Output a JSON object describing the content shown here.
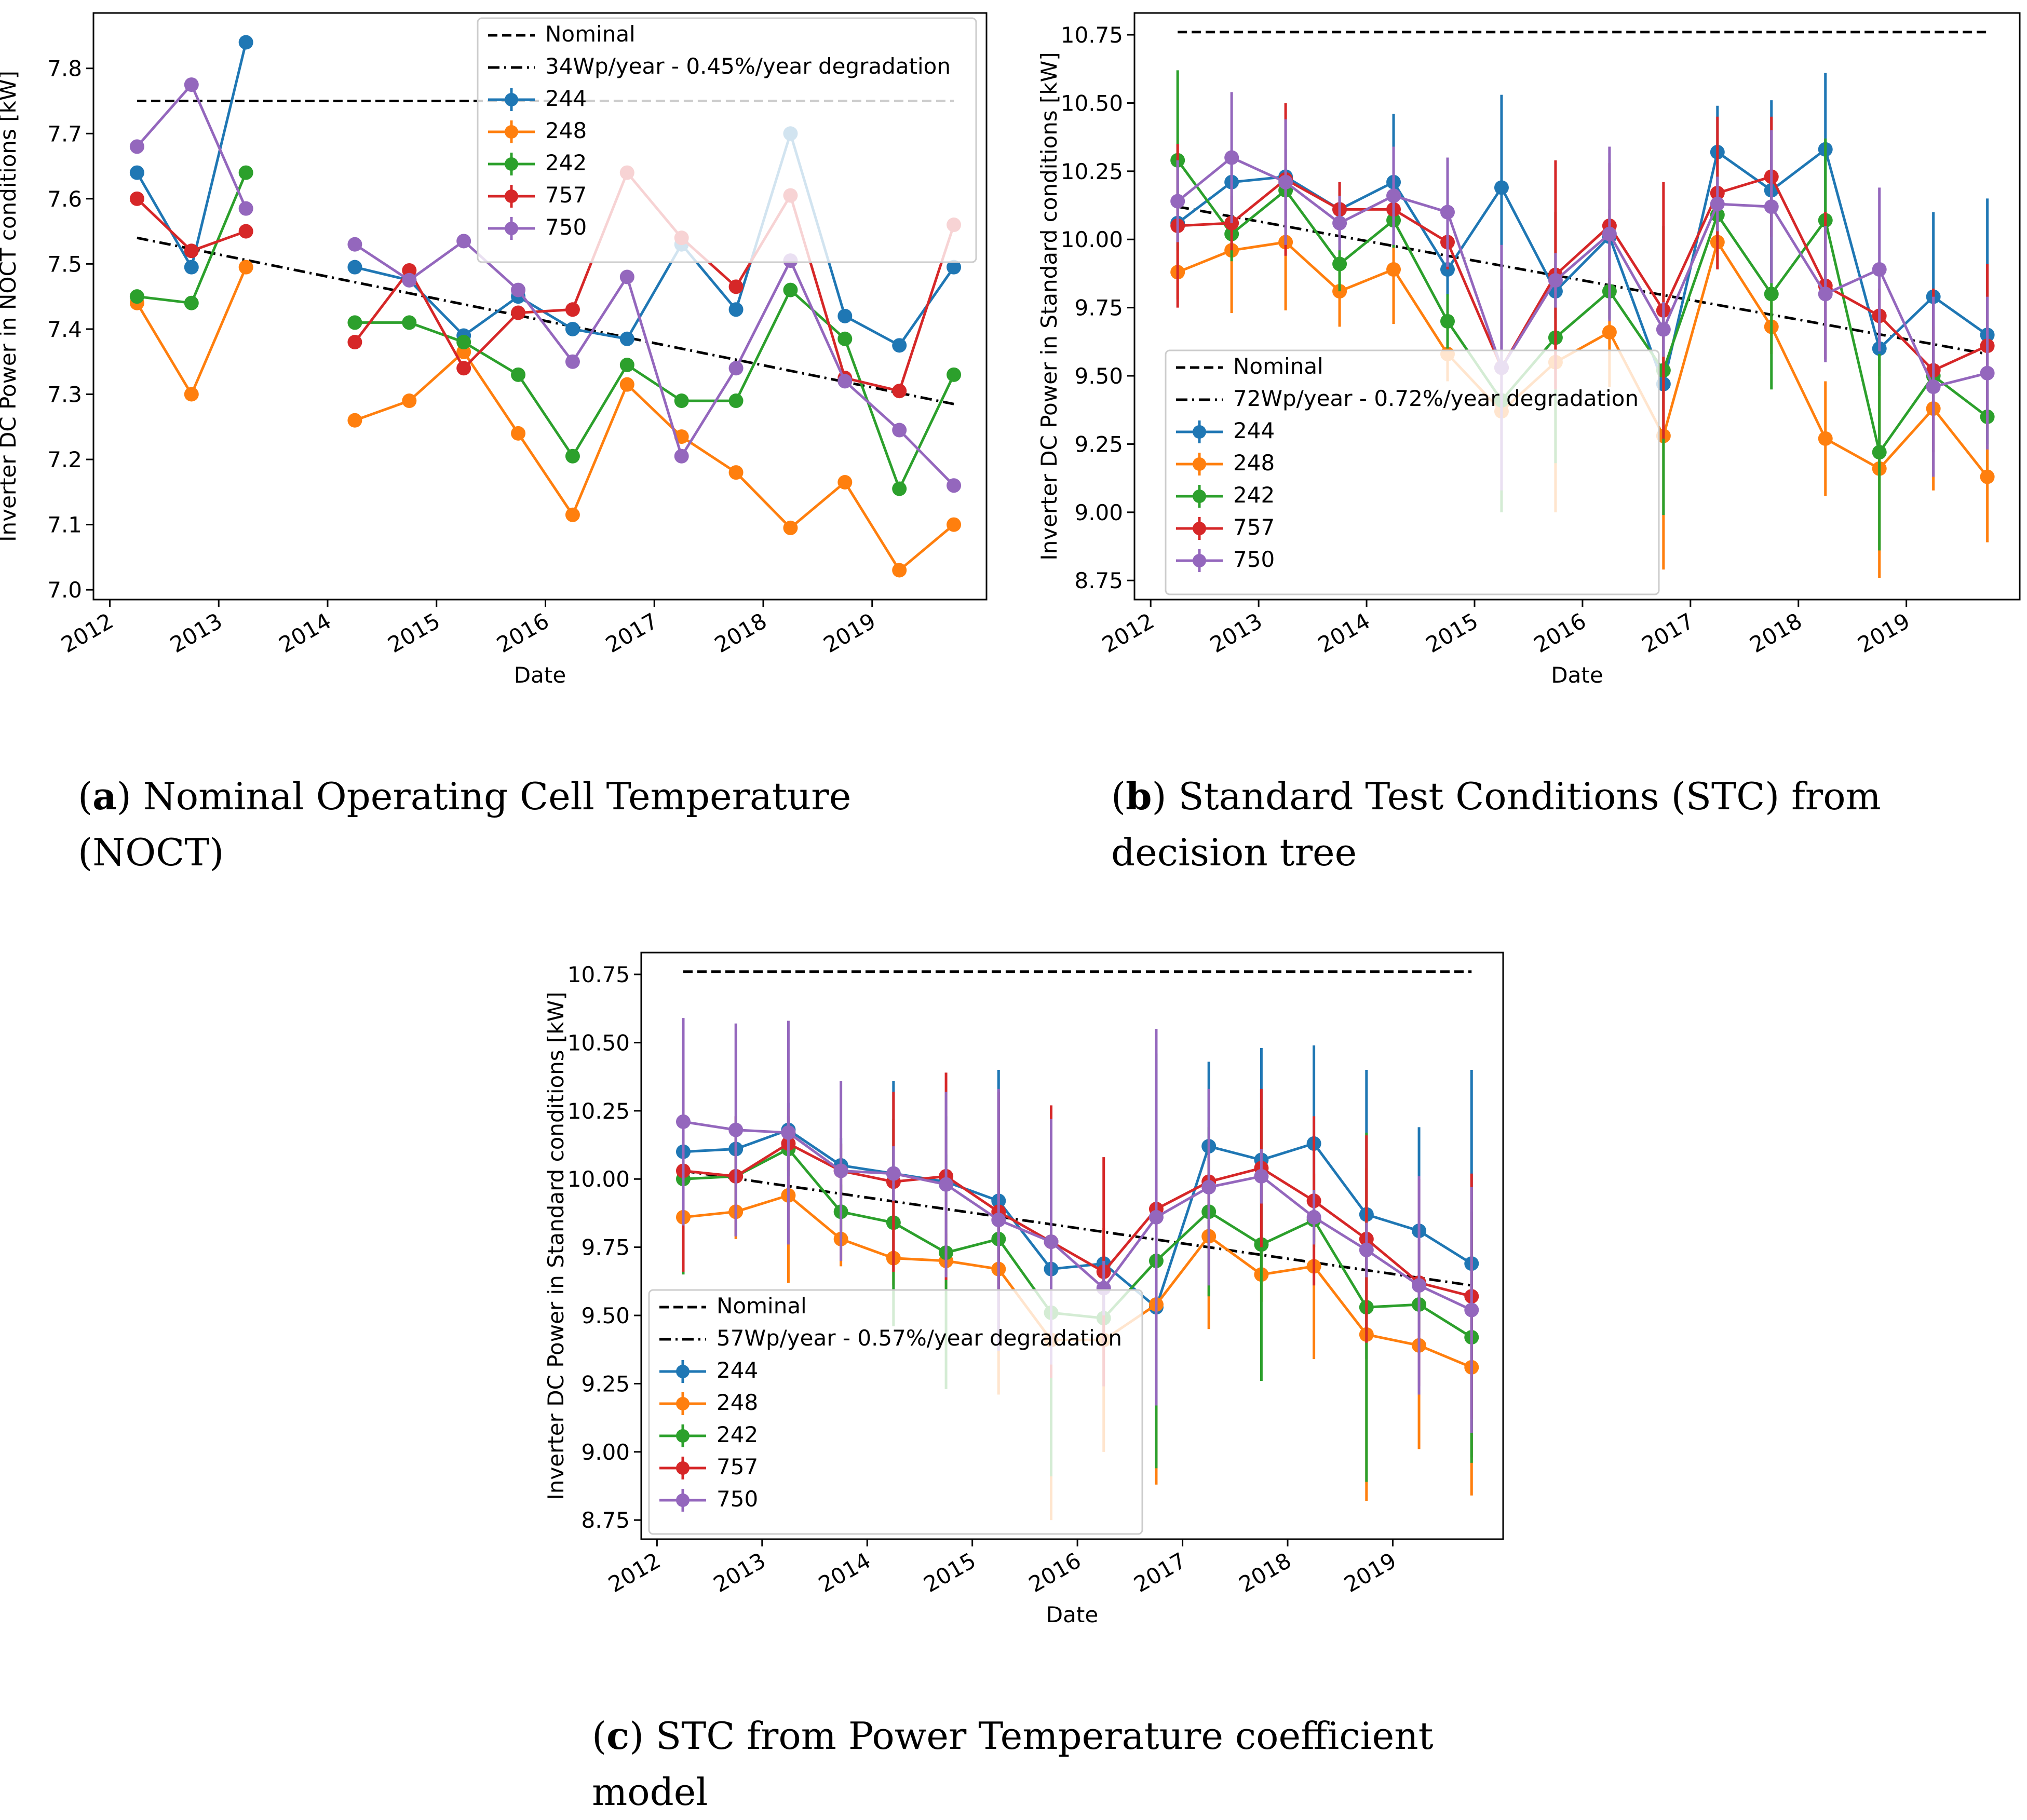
{
  "figure": {
    "captions": [
      {
        "letter": "a",
        "text": "Nominal Operating Cell Temperature (NOCT)"
      },
      {
        "letter": "b",
        "text": "Standard Test Conditions (STC) from decision tree"
      },
      {
        "letter": "c",
        "text": "STC from Power Temperature coefficient model"
      }
    ]
  },
  "chart_data": [
    {
      "id": "a",
      "type": "line",
      "xlabel": "Date",
      "ylabel": "Inverter DC Power in NOCT conditions [kW]",
      "xlim": [
        2011.85,
        2020.05
      ],
      "ylim": [
        6.985,
        7.885
      ],
      "yticks": [
        7.0,
        7.1,
        7.2,
        7.3,
        7.4,
        7.5,
        7.6,
        7.7,
        7.8
      ],
      "ytick_labels": [
        "7.0",
        "7.1",
        "7.2",
        "7.3",
        "7.4",
        "7.5",
        "7.6",
        "7.7",
        "7.8"
      ],
      "xticks": [
        2012,
        2013,
        2014,
        2015,
        2016,
        2017,
        2018,
        2019
      ],
      "xtick_labels": [
        "2012",
        "2013",
        "2014",
        "2015",
        "2016",
        "2017",
        "2018",
        "2019"
      ],
      "legend_position": "top-right",
      "nominal": {
        "label": "Nominal",
        "value": 7.75
      },
      "trend": {
        "label": "34Wp/year - 0.45%/year degradation",
        "start": 7.54,
        "end": 7.285
      },
      "x": [
        2012.25,
        2012.75,
        2013.25,
        null,
        2014.25,
        2014.75,
        2015.25,
        2015.75,
        2016.25,
        2016.75,
        2017.25,
        2017.75,
        2018.25,
        2018.75,
        2019.25,
        2019.75
      ],
      "series": [
        {
          "name": "244",
          "color": "#1f77b4",
          "values": [
            7.64,
            7.495,
            7.84,
            null,
            7.495,
            7.475,
            7.39,
            7.45,
            7.4,
            7.385,
            7.53,
            7.43,
            7.7,
            7.42,
            7.375,
            7.495
          ],
          "errors": []
        },
        {
          "name": "248",
          "color": "#ff7f0e",
          "values": [
            7.44,
            7.3,
            7.495,
            null,
            7.26,
            7.29,
            7.365,
            7.24,
            7.115,
            7.315,
            7.235,
            7.18,
            7.095,
            7.165,
            7.03,
            7.1
          ],
          "errors": []
        },
        {
          "name": "242",
          "color": "#2ca02c",
          "values": [
            7.45,
            7.44,
            7.64,
            null,
            7.41,
            7.41,
            7.38,
            7.33,
            7.205,
            7.345,
            7.29,
            7.29,
            7.46,
            7.385,
            7.155,
            7.33
          ],
          "errors": []
        },
        {
          "name": "757",
          "color": "#d62728",
          "values": [
            7.6,
            7.52,
            7.55,
            null,
            7.38,
            7.49,
            7.34,
            7.425,
            7.43,
            7.64,
            7.54,
            7.465,
            7.605,
            7.325,
            7.305,
            7.56
          ],
          "errors": []
        },
        {
          "name": "750",
          "color": "#9467bd",
          "values": [
            7.68,
            7.775,
            7.585,
            null,
            7.53,
            7.475,
            7.535,
            7.46,
            7.35,
            7.48,
            7.205,
            7.34,
            7.505,
            7.32,
            7.245,
            7.16
          ],
          "errors": []
        }
      ]
    },
    {
      "id": "b",
      "type": "line",
      "xlabel": "Date",
      "ylabel": "Inverter DC Power in Standard conditions [kW]",
      "xlim": [
        2011.85,
        2020.05
      ],
      "ylim": [
        8.68,
        10.83
      ],
      "yticks": [
        8.75,
        9.0,
        9.25,
        9.5,
        9.75,
        10.0,
        10.25,
        10.5,
        10.75
      ],
      "ytick_labels": [
        "8.75",
        "9.00",
        "9.25",
        "9.50",
        "9.75",
        "10.00",
        "10.25",
        "10.50",
        "10.75"
      ],
      "xticks": [
        2012,
        2013,
        2014,
        2015,
        2016,
        2017,
        2018,
        2019
      ],
      "xtick_labels": [
        "2012",
        "2013",
        "2014",
        "2015",
        "2016",
        "2017",
        "2018",
        "2019"
      ],
      "legend_position": "bottom-left",
      "nominal": {
        "label": "Nominal",
        "value": 10.76
      },
      "trend": {
        "label": "72Wp/year - 0.72%/year degradation",
        "start": 10.12,
        "end": 9.58
      },
      "x": [
        2012.25,
        2012.75,
        2013.25,
        2013.75,
        2014.25,
        2014.75,
        2015.25,
        2015.75,
        2016.25,
        2016.75,
        2017.25,
        2017.75,
        2018.25,
        2018.75,
        2019.25,
        2019.75
      ],
      "series": [
        {
          "name": "244",
          "color": "#1f77b4",
          "values": [
            10.06,
            10.21,
            10.23,
            10.11,
            10.21,
            9.89,
            10.19,
            9.81,
            10.01,
            9.47,
            10.32,
            10.18,
            10.33,
            9.6,
            9.79,
            9.65
          ],
          "errors": [
            0.1,
            0.1,
            0.1,
            0.1,
            0.25,
            0.1,
            0.34,
            0.1,
            0.1,
            0.1,
            0.17,
            0.33,
            0.28,
            0.1,
            0.31,
            0.5
          ]
        },
        {
          "name": "248",
          "color": "#ff7f0e",
          "values": [
            9.88,
            9.96,
            9.99,
            9.81,
            9.89,
            9.58,
            9.37,
            9.55,
            9.66,
            9.28,
            9.99,
            9.68,
            9.27,
            9.16,
            9.38,
            9.13
          ],
          "errors": [
            0.1,
            0.23,
            0.25,
            0.13,
            0.2,
            0.1,
            0.1,
            0.55,
            0.2,
            0.49,
            0.1,
            0.1,
            0.21,
            0.4,
            0.3,
            0.24
          ]
        },
        {
          "name": "242",
          "color": "#2ca02c",
          "values": [
            10.29,
            10.02,
            10.18,
            9.91,
            10.07,
            9.7,
            9.41,
            9.64,
            9.81,
            9.52,
            10.09,
            9.8,
            10.07,
            9.22,
            9.5,
            9.35
          ],
          "errors": [
            0.33,
            0.1,
            0.1,
            0.1,
            0.1,
            0.1,
            0.41,
            0.46,
            0.1,
            0.53,
            0.1,
            0.35,
            0.3,
            0.36,
            0.1,
            0.1
          ]
        },
        {
          "name": "757",
          "color": "#d62728",
          "values": [
            10.05,
            10.06,
            10.22,
            10.11,
            10.11,
            9.99,
            9.53,
            9.87,
            10.05,
            9.74,
            10.17,
            10.23,
            9.83,
            9.72,
            9.52,
            9.61
          ],
          "errors": [
            0.3,
            0.1,
            0.28,
            0.1,
            0.1,
            0.1,
            0.1,
            0.42,
            0.23,
            0.47,
            0.28,
            0.22,
            0.27,
            0.1,
            0.3,
            0.3
          ]
        },
        {
          "name": "750",
          "color": "#9467bd",
          "values": [
            10.14,
            10.3,
            10.21,
            10.06,
            10.16,
            10.1,
            9.53,
            9.85,
            10.02,
            9.67,
            10.13,
            10.12,
            9.8,
            9.89,
            9.46,
            9.51
          ],
          "errors": [
            0.15,
            0.24,
            0.23,
            0.1,
            0.18,
            0.2,
            0.45,
            0.1,
            0.32,
            0.1,
            0.1,
            0.28,
            0.25,
            0.3,
            0.33,
            0.28
          ]
        }
      ]
    },
    {
      "id": "c",
      "type": "line",
      "xlabel": "Date",
      "ylabel": "Inverter DC Power in Standard conditions [kW]",
      "xlim": [
        2011.85,
        2020.05
      ],
      "ylim": [
        8.68,
        10.83
      ],
      "yticks": [
        8.75,
        9.0,
        9.25,
        9.5,
        9.75,
        10.0,
        10.25,
        10.5,
        10.75
      ],
      "ytick_labels": [
        "8.75",
        "9.00",
        "9.25",
        "9.50",
        "9.75",
        "10.00",
        "10.25",
        "10.50",
        "10.75"
      ],
      "xticks": [
        2012,
        2013,
        2014,
        2015,
        2016,
        2017,
        2018,
        2019
      ],
      "xtick_labels": [
        "2012",
        "2013",
        "2014",
        "2015",
        "2016",
        "2017",
        "2018",
        "2019"
      ],
      "legend_position": "bottom-left",
      "nominal": {
        "label": "Nominal",
        "value": 10.76
      },
      "trend": {
        "label": "57Wp/year - 0.57%/year degradation",
        "start": 10.03,
        "end": 9.61
      },
      "x": [
        2012.25,
        2012.75,
        2013.25,
        2013.75,
        2014.25,
        2014.75,
        2015.25,
        2015.75,
        2016.25,
        2016.75,
        2017.25,
        2017.75,
        2018.25,
        2018.75,
        2019.25,
        2019.75
      ],
      "series": [
        {
          "name": "244",
          "color": "#1f77b4",
          "values": [
            10.1,
            10.11,
            10.18,
            10.05,
            10.02,
            9.99,
            9.92,
            9.67,
            9.69,
            9.53,
            10.12,
            10.07,
            10.13,
            9.87,
            9.81,
            9.69
          ],
          "errors": [
            0.1,
            0.1,
            0.1,
            0.1,
            0.34,
            0.1,
            0.48,
            0.1,
            0.1,
            0.1,
            0.31,
            0.41,
            0.36,
            0.53,
            0.38,
            0.71
          ]
        },
        {
          "name": "248",
          "color": "#ff7f0e",
          "values": [
            9.86,
            9.88,
            9.94,
            9.78,
            9.71,
            9.7,
            9.67,
            9.41,
            9.41,
            9.54,
            9.79,
            9.65,
            9.68,
            9.43,
            9.39,
            9.31
          ],
          "errors": [
            0.1,
            0.1,
            0.32,
            0.1,
            0.1,
            0.1,
            0.46,
            0.66,
            0.41,
            0.66,
            0.34,
            0.1,
            0.34,
            0.61,
            0.38,
            0.47
          ]
        },
        {
          "name": "242",
          "color": "#2ca02c",
          "values": [
            10.0,
            10.01,
            10.11,
            9.88,
            9.84,
            9.73,
            9.78,
            9.51,
            9.49,
            9.7,
            9.88,
            9.76,
            9.85,
            9.53,
            9.54,
            9.42
          ],
          "errors": [
            0.35,
            0.1,
            0.1,
            0.1,
            0.38,
            0.5,
            0.1,
            0.6,
            0.1,
            0.76,
            0.31,
            0.5,
            0.1,
            0.64,
            0.1,
            0.46
          ]
        },
        {
          "name": "757",
          "color": "#d62728",
          "values": [
            10.03,
            10.01,
            10.13,
            10.03,
            9.99,
            10.01,
            9.88,
            9.77,
            9.66,
            9.89,
            9.99,
            10.04,
            9.92,
            9.78,
            9.62,
            9.57
          ],
          "errors": [
            0.37,
            0.22,
            0.1,
            0.1,
            0.33,
            0.38,
            0.44,
            0.5,
            0.42,
            0.1,
            0.1,
            0.29,
            0.31,
            0.38,
            0.38,
            0.45
          ]
        },
        {
          "name": "750",
          "color": "#9467bd",
          "values": [
            10.21,
            10.18,
            10.17,
            10.03,
            10.02,
            9.98,
            9.85,
            9.77,
            9.6,
            9.86,
            9.97,
            10.01,
            9.86,
            9.74,
            9.61,
            9.52
          ],
          "errors": [
            0.38,
            0.39,
            0.41,
            0.33,
            0.1,
            0.34,
            0.48,
            0.45,
            0.1,
            0.69,
            0.36,
            0.1,
            0.1,
            0.1,
            0.4,
            0.45
          ]
        }
      ]
    }
  ]
}
